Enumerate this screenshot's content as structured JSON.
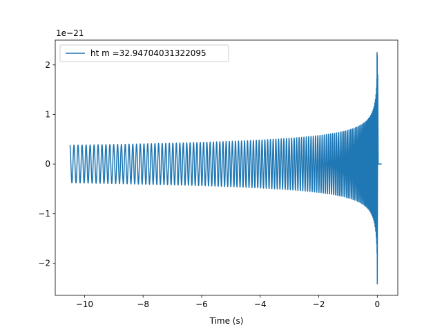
{
  "chart_data": {
    "type": "line",
    "title": "",
    "xlabel": "Time (s)",
    "ylabel": "",
    "y_offset_label": "1e−21",
    "xlim": [
      -11.0,
      0.7
    ],
    "ylim": [
      -2.65,
      2.5
    ],
    "x_ticks": [
      -10,
      -8,
      -6,
      -4,
      -2,
      0
    ],
    "x_tick_labels": [
      "−10",
      "−8",
      "−6",
      "−4",
      "−2",
      "0"
    ],
    "y_ticks": [
      -2,
      -1,
      0,
      1,
      2
    ],
    "y_tick_labels": [
      "−2",
      "−1",
      "0",
      "1",
      "2"
    ],
    "grid": false,
    "legend_position": "upper-left",
    "series": [
      {
        "name": "ht m =32.94704031322095",
        "color": "#1f77b4",
        "waveform": "chirp",
        "t_start": -10.5,
        "t_merger": 0.0,
        "t_end": 0.15,
        "initial_amplitude": 0.38,
        "peak_amplitude_positive": 2.25,
        "peak_amplitude_negative": -2.42,
        "cycles_in_view": 120
      }
    ]
  }
}
